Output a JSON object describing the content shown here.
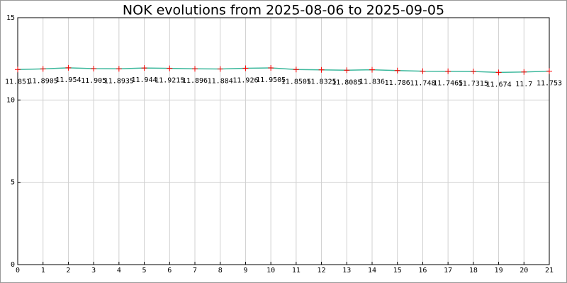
{
  "chart_data": {
    "type": "line",
    "title": "NOK evolutions from 2025-08-06 to 2025-09-05",
    "x": [
      0,
      1,
      2,
      3,
      4,
      5,
      6,
      7,
      8,
      9,
      10,
      11,
      12,
      13,
      14,
      15,
      16,
      17,
      18,
      19,
      20,
      21
    ],
    "series": [
      {
        "color": "#3cb89c",
        "marker_color": "#ff0000",
        "values": [
          11.851,
          11.8905,
          11.954,
          11.905,
          11.8935,
          11.944,
          11.9215,
          11.896,
          11.884,
          11.926,
          11.9505,
          11.8505,
          11.8325,
          11.8085,
          11.836,
          11.786,
          11.748,
          11.7465,
          11.7315,
          11.674,
          11.7,
          11.753
        ]
      }
    ],
    "xlim": [
      0,
      21
    ],
    "xticks": [
      0,
      1,
      2,
      3,
      4,
      5,
      6,
      7,
      8,
      9,
      10,
      11,
      12,
      13,
      14,
      15,
      16,
      17,
      18,
      19,
      20,
      21
    ],
    "ylim": [
      0,
      15
    ],
    "yticks": [
      0,
      5,
      10,
      15
    ],
    "grid": true
  }
}
